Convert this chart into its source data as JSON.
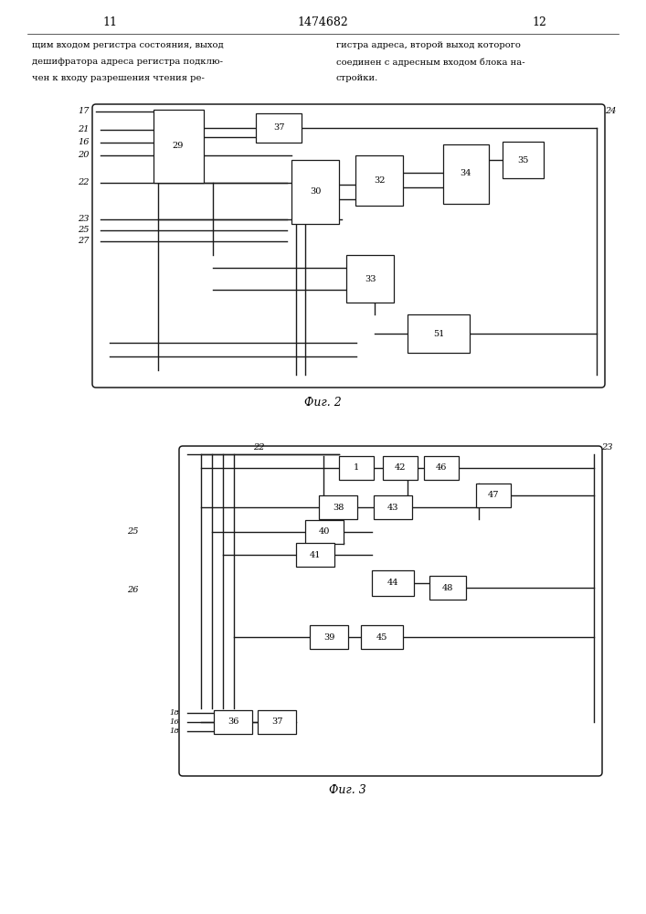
{
  "page_numbers": [
    "11",
    "1474682",
    "12"
  ],
  "text_left": "щим входом регистра состояния, выход\nдешифратора адреса регистра подклю-\nчен к входу разрешения чтения ре-",
  "text_right": "гистра адреса, второй выход которого\nсоединен с адресным входом блока на-\nстройки.",
  "fig2_label": "Фиг. 2",
  "fig3_label": "Фиг. 3",
  "bg_color": "#ffffff",
  "line_color": "#1a1a1a"
}
